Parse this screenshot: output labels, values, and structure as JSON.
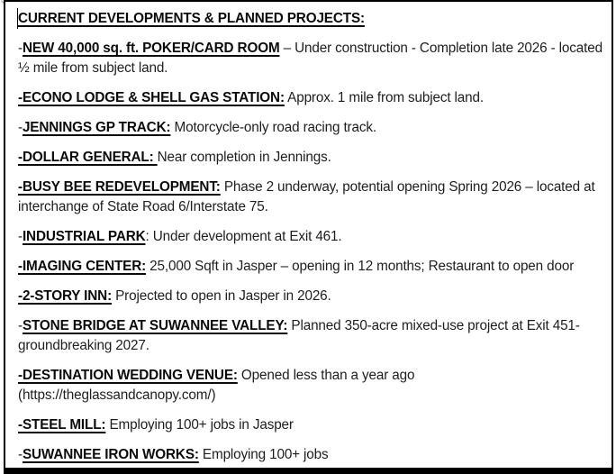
{
  "colors": {
    "background": "#ffffff",
    "border": "#000000",
    "heading_text": "#0b0b0b",
    "body_text": "#1e1e1e",
    "caret": "#000000"
  },
  "text_cursor": {
    "position": "before-title"
  },
  "document": {
    "title": "CURRENT DEVELOPMENTS & PLANNED PROJECTS:",
    "entries": [
      {
        "pre": "-",
        "head": "NEW 40,000 sq. ft. POKER/CARD ROOM",
        "body": " – Under construction - Completion late 2026 - located ½ mile from subject land."
      },
      {
        "pre": "",
        "head": "-ECONO LODGE & SHELL GAS STATION:",
        "body": " Approx. 1 mile from subject land."
      },
      {
        "pre": "-",
        "head": "JENNINGS GP TRACK:",
        "body": " Motorcycle-only road racing track."
      },
      {
        "pre": "",
        "head": "-DOLLAR GENERAL: ",
        "body": "Near completion in Jennings."
      },
      {
        "pre": "",
        "head": "-BUSY BEE REDEVELOPMENT:",
        "body": " Phase 2 underway, potential opening Spring 2026 – located at interchange of State Road 6/Interstate 75."
      },
      {
        "pre": "-",
        "head": "INDUSTRIAL PARK",
        "body": ": Under development at Exit 461."
      },
      {
        "pre": "",
        "head": "-IMAGING CENTER:",
        "body": " 25,000 Sqft in Jasper – opening in 12 months; Restaurant to open door"
      },
      {
        "pre": "",
        "head": "-2-STORY INN:",
        "body": " Projected to open in Jasper in 2026."
      },
      {
        "pre": "-",
        "head": "STONE BRIDGE AT SUWANNEE VALLEY:",
        "body": " Planned 350-acre mixed-use project at Exit 451-groundbreaking 2027."
      },
      {
        "pre": "",
        "head": "-DESTINATION WEDDING VENUE:",
        "body": " Opened less than a year ago (https://theglassandcanopy.com/)"
      },
      {
        "pre": "",
        "head": "-STEEL MILL:",
        "body": " Employing 100+ jobs in Jasper"
      },
      {
        "pre": "-",
        "head": "SUWANNEE IRON WORKS:",
        "body": " Employing 100+ jobs"
      }
    ]
  }
}
